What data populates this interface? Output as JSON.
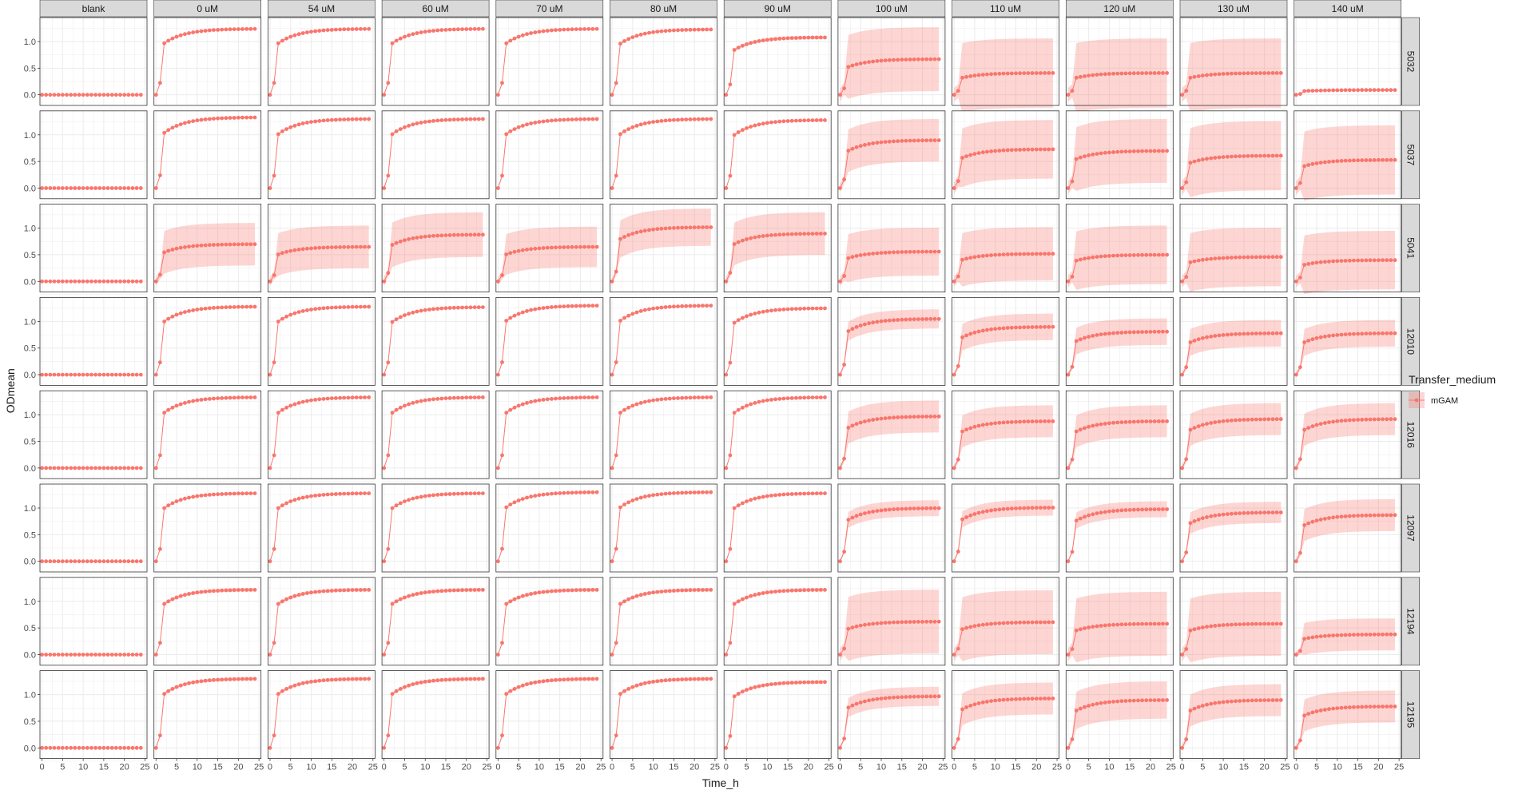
{
  "chart_data": {
    "type": "line",
    "xlabel": "Time_h",
    "ylabel": "ODmean",
    "xlim": [
      -0.5,
      25.5
    ],
    "ylim": [
      -0.2,
      1.45
    ],
    "x_ticks": [
      0,
      5,
      10,
      15,
      20,
      25
    ],
    "y_ticks": [
      0.0,
      0.5,
      1.0
    ],
    "grid": true,
    "col_facets": [
      "blank",
      "0 uM",
      "54 uM",
      "60 uM",
      "70 uM",
      "80 uM",
      "90 uM",
      "100 uM",
      "110 uM",
      "120 uM",
      "130 uM",
      "140 uM"
    ],
    "row_facets": [
      "5032",
      "5037",
      "5041",
      "12010",
      "12016",
      "12097",
      "12194",
      "12195"
    ],
    "x": [
      0,
      1,
      2,
      3,
      4,
      5,
      6,
      7,
      8,
      9,
      10,
      11,
      12,
      13,
      14,
      15,
      16,
      17,
      18,
      19,
      20,
      21,
      22,
      23,
      24
    ],
    "legend": {
      "title": "Transfer_medium",
      "entries": [
        "mGAM"
      ],
      "position": "right"
    },
    "colors": {
      "line": "#F8766D",
      "ribbon": "#F8766D",
      "panel_bg": "#FFFFFF",
      "grid": "#EBEBEB",
      "strip_bg": "#D9D9D9"
    },
    "series": [
      {
        "row": "5032",
        "col": "blank",
        "final": 0.0,
        "ribbon": 0.0
      },
      {
        "row": "5032",
        "col": "0 uM",
        "final": 1.24,
        "ribbon": 0.02
      },
      {
        "row": "5032",
        "col": "54 uM",
        "final": 1.24,
        "ribbon": 0.02
      },
      {
        "row": "5032",
        "col": "60 uM",
        "final": 1.24,
        "ribbon": 0.02
      },
      {
        "row": "5032",
        "col": "70 uM",
        "final": 1.24,
        "ribbon": 0.02
      },
      {
        "row": "5032",
        "col": "80 uM",
        "final": 1.23,
        "ribbon": 0.02
      },
      {
        "row": "5032",
        "col": "90 uM",
        "final": 1.08,
        "ribbon": 0.03
      },
      {
        "row": "5032",
        "col": "100 uM",
        "final": 0.67,
        "ribbon": 0.6
      },
      {
        "row": "5032",
        "col": "110 uM",
        "final": 0.41,
        "ribbon": 0.65
      },
      {
        "row": "5032",
        "col": "120 uM",
        "final": 0.41,
        "ribbon": 0.65
      },
      {
        "row": "5032",
        "col": "130 uM",
        "final": 0.41,
        "ribbon": 0.65
      },
      {
        "row": "5032",
        "col": "140 uM",
        "final": 0.09,
        "ribbon": 0.02
      },
      {
        "row": "5037",
        "col": "blank",
        "final": 0.0,
        "ribbon": 0.0
      },
      {
        "row": "5037",
        "col": "0 uM",
        "final": 1.33,
        "ribbon": 0.02
      },
      {
        "row": "5037",
        "col": "54 uM",
        "final": 1.3,
        "ribbon": 0.02
      },
      {
        "row": "5037",
        "col": "60 uM",
        "final": 1.3,
        "ribbon": 0.02
      },
      {
        "row": "5037",
        "col": "70 uM",
        "final": 1.3,
        "ribbon": 0.02
      },
      {
        "row": "5037",
        "col": "80 uM",
        "final": 1.3,
        "ribbon": 0.02
      },
      {
        "row": "5037",
        "col": "90 uM",
        "final": 1.28,
        "ribbon": 0.02
      },
      {
        "row": "5037",
        "col": "100 uM",
        "final": 0.9,
        "ribbon": 0.4
      },
      {
        "row": "5037",
        "col": "110 uM",
        "final": 0.73,
        "ribbon": 0.55
      },
      {
        "row": "5037",
        "col": "120 uM",
        "final": 0.7,
        "ribbon": 0.6
      },
      {
        "row": "5037",
        "col": "130 uM",
        "final": 0.61,
        "ribbon": 0.65
      },
      {
        "row": "5037",
        "col": "140 uM",
        "final": 0.53,
        "ribbon": 0.65
      },
      {
        "row": "5041",
        "col": "blank",
        "final": 0.0,
        "ribbon": 0.0
      },
      {
        "row": "5041",
        "col": "0 uM",
        "final": 0.7,
        "ribbon": 0.4
      },
      {
        "row": "5041",
        "col": "54 uM",
        "final": 0.65,
        "ribbon": 0.4
      },
      {
        "row": "5041",
        "col": "60 uM",
        "final": 0.88,
        "ribbon": 0.42
      },
      {
        "row": "5041",
        "col": "70 uM",
        "final": 0.65,
        "ribbon": 0.38
      },
      {
        "row": "5041",
        "col": "80 uM",
        "final": 1.02,
        "ribbon": 0.35
      },
      {
        "row": "5041",
        "col": "90 uM",
        "final": 0.9,
        "ribbon": 0.4
      },
      {
        "row": "5041",
        "col": "100 uM",
        "final": 0.56,
        "ribbon": 0.45
      },
      {
        "row": "5041",
        "col": "110 uM",
        "final": 0.52,
        "ribbon": 0.5
      },
      {
        "row": "5041",
        "col": "120 uM",
        "final": 0.5,
        "ribbon": 0.55
      },
      {
        "row": "5041",
        "col": "130 uM",
        "final": 0.46,
        "ribbon": 0.55
      },
      {
        "row": "5041",
        "col": "140 uM",
        "final": 0.4,
        "ribbon": 0.55
      },
      {
        "row": "12010",
        "col": "blank",
        "final": 0.0,
        "ribbon": 0.0
      },
      {
        "row": "12010",
        "col": "0 uM",
        "final": 1.28,
        "ribbon": 0.02
      },
      {
        "row": "12010",
        "col": "54 uM",
        "final": 1.28,
        "ribbon": 0.02
      },
      {
        "row": "12010",
        "col": "60 uM",
        "final": 1.27,
        "ribbon": 0.02
      },
      {
        "row": "12010",
        "col": "70 uM",
        "final": 1.3,
        "ribbon": 0.02
      },
      {
        "row": "12010",
        "col": "80 uM",
        "final": 1.3,
        "ribbon": 0.02
      },
      {
        "row": "12010",
        "col": "90 uM",
        "final": 1.25,
        "ribbon": 0.02
      },
      {
        "row": "12010",
        "col": "100 uM",
        "final": 1.05,
        "ribbon": 0.18
      },
      {
        "row": "12010",
        "col": "110 uM",
        "final": 0.9,
        "ribbon": 0.25
      },
      {
        "row": "12010",
        "col": "120 uM",
        "final": 0.81,
        "ribbon": 0.25
      },
      {
        "row": "12010",
        "col": "130 uM",
        "final": 0.78,
        "ribbon": 0.25
      },
      {
        "row": "12010",
        "col": "140 uM",
        "final": 0.78,
        "ribbon": 0.25
      },
      {
        "row": "12016",
        "col": "blank",
        "final": 0.0,
        "ribbon": 0.0
      },
      {
        "row": "12016",
        "col": "0 uM",
        "final": 1.33,
        "ribbon": 0.02
      },
      {
        "row": "12016",
        "col": "54 uM",
        "final": 1.33,
        "ribbon": 0.02
      },
      {
        "row": "12016",
        "col": "60 uM",
        "final": 1.33,
        "ribbon": 0.02
      },
      {
        "row": "12016",
        "col": "70 uM",
        "final": 1.33,
        "ribbon": 0.02
      },
      {
        "row": "12016",
        "col": "80 uM",
        "final": 1.33,
        "ribbon": 0.02
      },
      {
        "row": "12016",
        "col": "90 uM",
        "final": 1.33,
        "ribbon": 0.02
      },
      {
        "row": "12016",
        "col": "100 uM",
        "final": 0.97,
        "ribbon": 0.3
      },
      {
        "row": "12016",
        "col": "110 uM",
        "final": 0.88,
        "ribbon": 0.3
      },
      {
        "row": "12016",
        "col": "120 uM",
        "final": 0.88,
        "ribbon": 0.3
      },
      {
        "row": "12016",
        "col": "130 uM",
        "final": 0.92,
        "ribbon": 0.3
      },
      {
        "row": "12016",
        "col": "140 uM",
        "final": 0.92,
        "ribbon": 0.3
      },
      {
        "row": "12097",
        "col": "blank",
        "final": 0.0,
        "ribbon": 0.0
      },
      {
        "row": "12097",
        "col": "0 uM",
        "final": 1.28,
        "ribbon": 0.02
      },
      {
        "row": "12097",
        "col": "54 uM",
        "final": 1.28,
        "ribbon": 0.02
      },
      {
        "row": "12097",
        "col": "60 uM",
        "final": 1.28,
        "ribbon": 0.02
      },
      {
        "row": "12097",
        "col": "70 uM",
        "final": 1.3,
        "ribbon": 0.02
      },
      {
        "row": "12097",
        "col": "80 uM",
        "final": 1.3,
        "ribbon": 0.02
      },
      {
        "row": "12097",
        "col": "90 uM",
        "final": 1.28,
        "ribbon": 0.02
      },
      {
        "row": "12097",
        "col": "100 uM",
        "final": 1.0,
        "ribbon": 0.15
      },
      {
        "row": "12097",
        "col": "110 uM",
        "final": 1.01,
        "ribbon": 0.15
      },
      {
        "row": "12097",
        "col": "120 uM",
        "final": 0.98,
        "ribbon": 0.15
      },
      {
        "row": "12097",
        "col": "130 uM",
        "final": 0.92,
        "ribbon": 0.2
      },
      {
        "row": "12097",
        "col": "140 uM",
        "final": 0.87,
        "ribbon": 0.3
      },
      {
        "row": "12194",
        "col": "blank",
        "final": 0.0,
        "ribbon": 0.0
      },
      {
        "row": "12194",
        "col": "0 uM",
        "final": 1.22,
        "ribbon": 0.03
      },
      {
        "row": "12194",
        "col": "54 uM",
        "final": 1.22,
        "ribbon": 0.03
      },
      {
        "row": "12194",
        "col": "60 uM",
        "final": 1.22,
        "ribbon": 0.03
      },
      {
        "row": "12194",
        "col": "70 uM",
        "final": 1.22,
        "ribbon": 0.03
      },
      {
        "row": "12194",
        "col": "80 uM",
        "final": 1.22,
        "ribbon": 0.03
      },
      {
        "row": "12194",
        "col": "90 uM",
        "final": 1.22,
        "ribbon": 0.03
      },
      {
        "row": "12194",
        "col": "100 uM",
        "final": 0.62,
        "ribbon": 0.6
      },
      {
        "row": "12194",
        "col": "110 uM",
        "final": 0.61,
        "ribbon": 0.6
      },
      {
        "row": "12194",
        "col": "120 uM",
        "final": 0.58,
        "ribbon": 0.6
      },
      {
        "row": "12194",
        "col": "130 uM",
        "final": 0.58,
        "ribbon": 0.6
      },
      {
        "row": "12194",
        "col": "140 uM",
        "final": 0.38,
        "ribbon": 0.3
      },
      {
        "row": "12195",
        "col": "blank",
        "final": 0.0,
        "ribbon": 0.0
      },
      {
        "row": "12195",
        "col": "0 uM",
        "final": 1.3,
        "ribbon": 0.03
      },
      {
        "row": "12195",
        "col": "54 uM",
        "final": 1.3,
        "ribbon": 0.03
      },
      {
        "row": "12195",
        "col": "60 uM",
        "final": 1.3,
        "ribbon": 0.03
      },
      {
        "row": "12195",
        "col": "70 uM",
        "final": 1.3,
        "ribbon": 0.03
      },
      {
        "row": "12195",
        "col": "80 uM",
        "final": 1.3,
        "ribbon": 0.03
      },
      {
        "row": "12195",
        "col": "90 uM",
        "final": 1.24,
        "ribbon": 0.03
      },
      {
        "row": "12195",
        "col": "100 uM",
        "final": 0.97,
        "ribbon": 0.18
      },
      {
        "row": "12195",
        "col": "110 uM",
        "final": 0.93,
        "ribbon": 0.3
      },
      {
        "row": "12195",
        "col": "120 uM",
        "final": 0.9,
        "ribbon": 0.35
      },
      {
        "row": "12195",
        "col": "130 uM",
        "final": 0.9,
        "ribbon": 0.3
      },
      {
        "row": "12195",
        "col": "140 uM",
        "final": 0.78,
        "ribbon": 0.3
      }
    ]
  }
}
